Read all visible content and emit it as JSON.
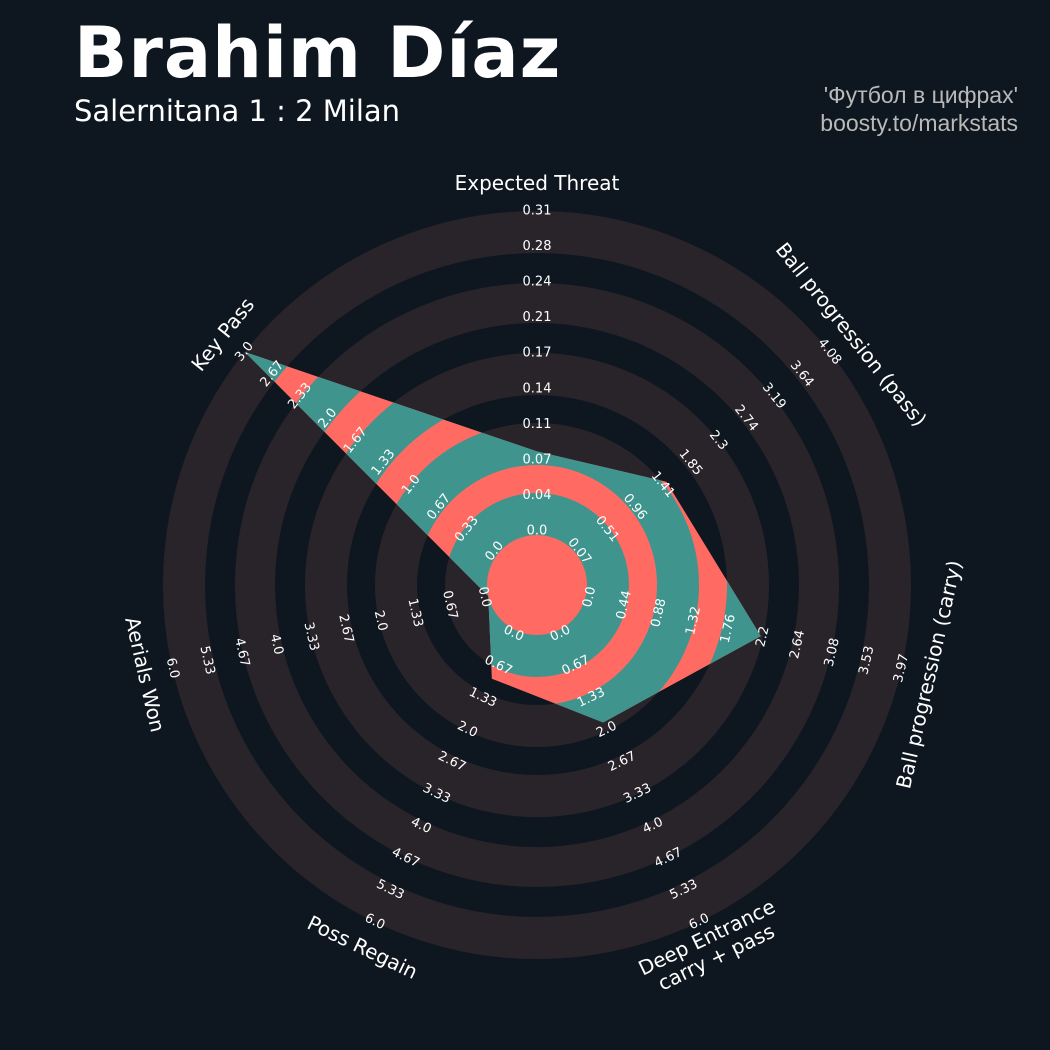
{
  "header": {
    "title": "Brahim Díaz",
    "subtitle": "Salernitana 1 : 2 Milan",
    "credit_line1": "'Футбол в цифрах'",
    "credit_line2": "boosty.to/markstats"
  },
  "colors": {
    "background": "#0e1720",
    "ring_light": "#29242a",
    "ring_dark": "#0e1720",
    "radar_coral": "#ff6b63",
    "radar_teal": "#3f958e"
  },
  "chart_data": {
    "type": "radar",
    "params": [
      {
        "name": [
          "Expected Threat"
        ],
        "min": 0.0,
        "max": 0.31,
        "value": 0.08,
        "ticks": [
          "0.0",
          "0.04",
          "0.07",
          "0.11",
          "0.14",
          "0.17",
          "0.21",
          "0.24",
          "0.28",
          "0.31"
        ]
      },
      {
        "name": [
          "Ball progression (pass)"
        ],
        "min": 0.07,
        "max": 4.08,
        "value": 1.5,
        "ticks": [
          "0.07",
          "0.51",
          "0.96",
          "1.41",
          "1.85",
          "2.3",
          "2.74",
          "3.19",
          "3.64",
          "4.08"
        ]
      },
      {
        "name": [
          "Ball progression (carry)"
        ],
        "min": 0.0,
        "max": 3.97,
        "value": 2.2,
        "ticks": [
          "0.0",
          "0.44",
          "0.88",
          "1.32",
          "1.76",
          "2.2",
          "2.64",
          "3.08",
          "3.53",
          "3.97"
        ]
      },
      {
        "name": [
          "Deep Entrance",
          "carry + pass"
        ],
        "min": 0.0,
        "max": 6.0,
        "value": 1.9,
        "ticks": [
          "0.0",
          "0.67",
          "1.33",
          "2.0",
          "2.67",
          "3.33",
          "4.0",
          "4.67",
          "5.33",
          "6.0"
        ]
      },
      {
        "name": [
          "Poss Regain"
        ],
        "min": 0.0,
        "max": 6.0,
        "value": 1.0,
        "ticks": [
          "0.0",
          "0.67",
          "1.33",
          "2.0",
          "2.67",
          "3.33",
          "4.0",
          "4.67",
          "5.33",
          "6.0"
        ]
      },
      {
        "name": [
          "Aerials Won"
        ],
        "min": 0.0,
        "max": 6.0,
        "value": 0.0,
        "ticks": [
          "0.0",
          "0.67",
          "1.33",
          "2.0",
          "2.67",
          "3.33",
          "4.0",
          "4.67",
          "5.33",
          "6.0"
        ]
      },
      {
        "name": [
          "Key Pass"
        ],
        "min": 0.0,
        "max": 3.0,
        "value": 3.0,
        "ticks": [
          "0.0",
          "0.33",
          "0.67",
          "1.0",
          "1.33",
          "1.67",
          "2.0",
          "2.33",
          "2.67",
          "3.0"
        ]
      }
    ]
  }
}
